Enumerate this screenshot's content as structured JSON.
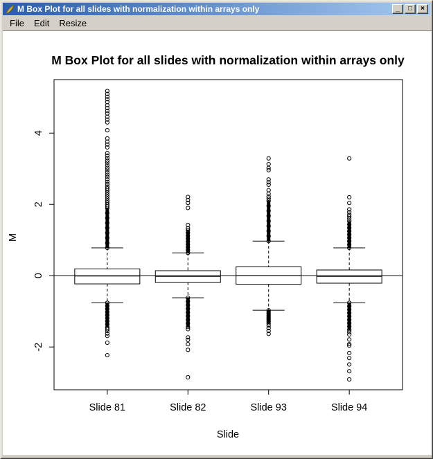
{
  "window": {
    "title": "M Box Plot for all slides with normalization within arrays only",
    "controls": {
      "minimize": "_",
      "maximize": "□",
      "close": "×"
    }
  },
  "menu": {
    "items": [
      "File",
      "Edit",
      "Resize"
    ]
  },
  "colors": {
    "titlebar_left": "#2b5cae",
    "titlebar_right": "#a6caf0",
    "chrome": "#d4d0c8",
    "plot_background": "#ffffff",
    "plot_stroke": "#000000",
    "icon_gold": "#e8c44a"
  },
  "chart_data": {
    "type": "boxplot",
    "title": "M Box Plot for all slides with normalization within arrays only",
    "xlabel": "Slide",
    "ylabel": "M",
    "categories": [
      "Slide 81",
      "Slide 82",
      "Slide 93",
      "Slide 94"
    ],
    "yticks": [
      -2,
      0,
      2,
      4
    ],
    "ylim": [
      -3.2,
      5.5
    ],
    "reference_line": 0,
    "grid": false,
    "legend": "none",
    "boxes": [
      {
        "label": "Slide 81",
        "q1": -0.23,
        "median": -0.01,
        "q3": 0.19,
        "whisker_low": -0.76,
        "whisker_high": 0.78,
        "solid_above": [
          0.78,
          1.9
        ],
        "circles_above": [
          1.95,
          2.0,
          2.05,
          2.1,
          2.16,
          2.22,
          2.28,
          2.34,
          2.4,
          2.45,
          2.5,
          2.57,
          2.63,
          2.7,
          2.77,
          2.83,
          2.9,
          2.97,
          3.03,
          3.1,
          3.17,
          3.23,
          3.3,
          3.37,
          3.44,
          3.6,
          3.68,
          3.76,
          3.85,
          4.08,
          4.3,
          4.38,
          4.46,
          4.55,
          4.62,
          4.7,
          4.78,
          4.87,
          4.95,
          5.02,
          5.1,
          5.18
        ],
        "solid_below": [
          -1.45,
          -0.76
        ],
        "circles_below": [
          -1.5,
          -1.55,
          -1.62,
          -1.69,
          -1.88,
          -2.23
        ]
      },
      {
        "label": "Slide 82",
        "q1": -0.19,
        "median": -0.02,
        "q3": 0.14,
        "whisker_low": -0.62,
        "whisker_high": 0.64,
        "solid_above": [
          0.64,
          1.28
        ],
        "circles_above": [
          1.33,
          1.42,
          1.9,
          2.04,
          2.12,
          2.21
        ],
        "solid_below": [
          -1.44,
          -0.62
        ],
        "circles_below": [
          -1.5,
          -1.73,
          -1.8,
          -1.92,
          -2.08,
          -2.85
        ]
      },
      {
        "label": "Slide 93",
        "q1": -0.24,
        "median": 0.0,
        "q3": 0.25,
        "whisker_low": -0.97,
        "whisker_high": 0.97,
        "solid_above": [
          0.97,
          2.1
        ],
        "circles_above": [
          2.16,
          2.22,
          2.3,
          2.4,
          2.55,
          2.62,
          2.7,
          2.96,
          3.02,
          3.13,
          3.29
        ],
        "solid_below": [
          -1.34,
          -0.97
        ],
        "circles_below": [
          -1.4,
          -1.47,
          -1.55,
          -1.63
        ]
      },
      {
        "label": "Slide 94",
        "q1": -0.21,
        "median": -0.02,
        "q3": 0.16,
        "whisker_low": -0.76,
        "whisker_high": 0.78,
        "solid_above": [
          0.78,
          1.53
        ],
        "circles_above": [
          1.6,
          1.66,
          1.71,
          1.78,
          1.86,
          2.04,
          2.2,
          3.29
        ],
        "solid_below": [
          -1.52,
          -0.76
        ],
        "circles_below": [
          -1.58,
          -1.65,
          -1.79,
          -1.92,
          -1.96,
          -2.17,
          -2.31,
          -2.49,
          -2.68,
          -2.91
        ]
      }
    ]
  }
}
